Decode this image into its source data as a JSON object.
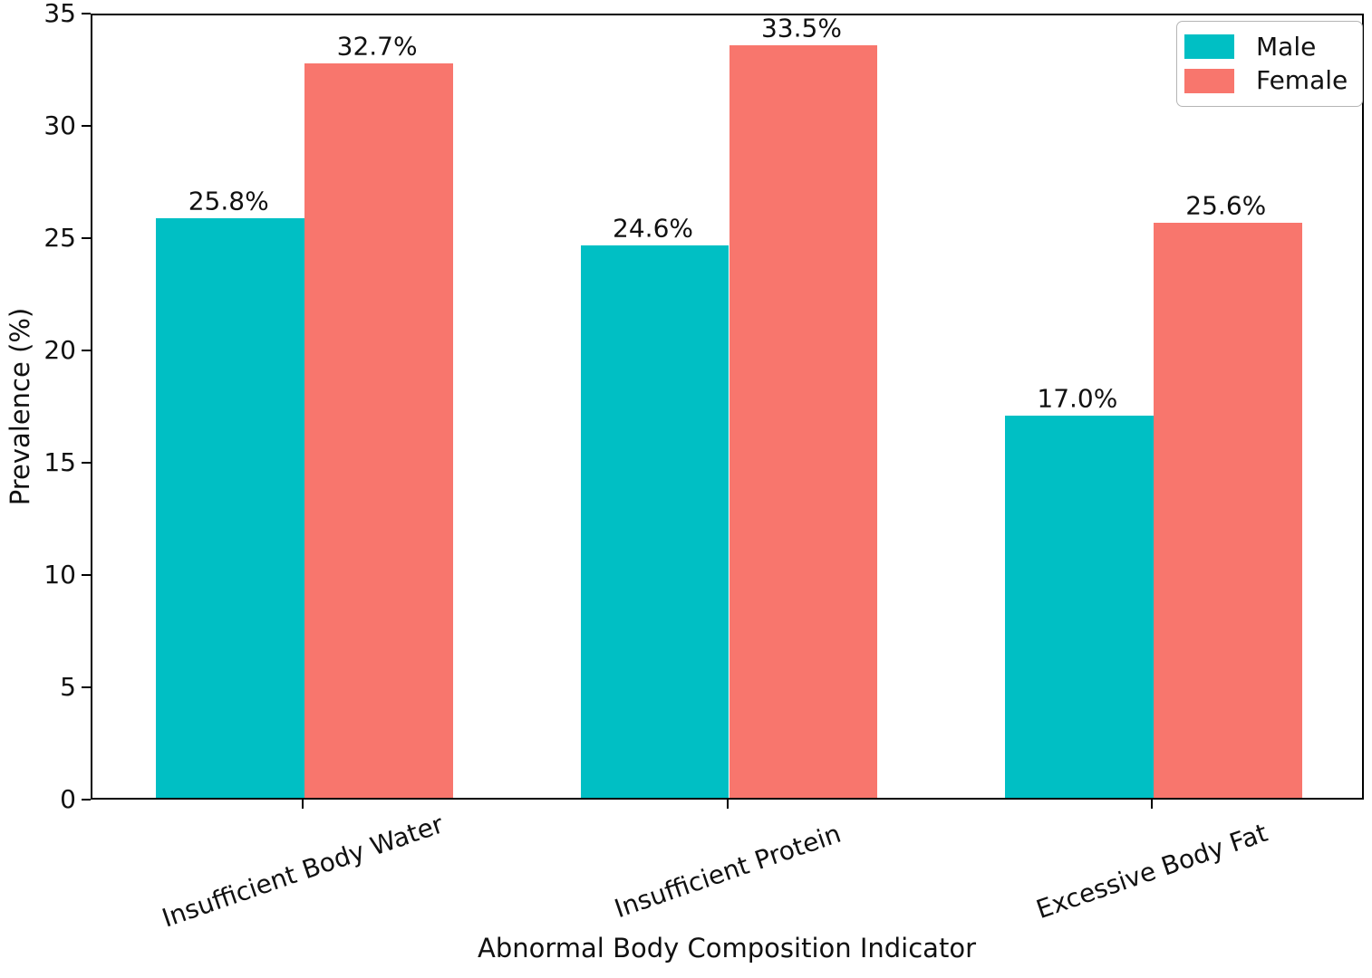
{
  "chart_data": {
    "type": "bar",
    "xlabel": "Abnormal Body Composition Indicator",
    "ylabel": "Prevalence (%)",
    "categories": [
      "Insufficient Body Water",
      "Insufficient Protein",
      "Excessive Body Fat"
    ],
    "series": [
      {
        "name": "Male",
        "color": "#00BFC4",
        "values": [
          25.8,
          24.6,
          17.0
        ],
        "labels": [
          "25.8%",
          "24.6%",
          "17.0%"
        ]
      },
      {
        "name": "Female",
        "color": "#F8766D",
        "values": [
          32.7,
          33.5,
          25.6
        ],
        "labels": [
          "32.7%",
          "33.5%",
          "25.6%"
        ]
      }
    ],
    "ylim": [
      0,
      35
    ],
    "yticks": [
      0,
      5,
      10,
      15,
      20,
      25,
      30,
      35
    ],
    "bar_width_fraction": 0.35,
    "xtick_rotation_deg": 19,
    "grid": false,
    "legend_position": "upper right"
  }
}
